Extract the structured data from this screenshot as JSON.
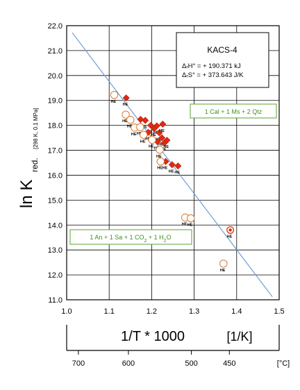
{
  "chart_data": {
    "type": "scatter",
    "title": "",
    "ylabel_main": "ln K",
    "ylabel_sub": "red.",
    "ylabel_sub2": "[298 K, 0.1 MPa]",
    "xlabel": "1/T * 1000",
    "xunit": "[1/K]",
    "celsius_unit": "[°C]",
    "xlim": [
      1.0,
      1.5
    ],
    "ylim": [
      11.0,
      22.0
    ],
    "x_ticks": [
      "1.0",
      "1.1",
      "1.2",
      "1.3",
      "1.4",
      "1.5"
    ],
    "y_ticks": [
      "11.0",
      "12.0",
      "13.0",
      "14.0",
      "15.0",
      "16.0",
      "17.0",
      "18.0",
      "19.0",
      "20.0",
      "21.0",
      "22.0"
    ],
    "celsius_ticks": [
      {
        "label": "700",
        "value": 700
      },
      {
        "label": "600",
        "value": 600
      },
      {
        "label": "500",
        "value": 500
      },
      {
        "label": "450",
        "value": 450
      }
    ],
    "grid": true,
    "legend_box": {
      "name": "KACS-4",
      "line1": "ΔᵣH° = +  190.371 kJ",
      "line2": "ΔᵣS° = +  373.643 J/K"
    },
    "annotations": {
      "upper_right": "1 Cal + 1 Ms + 2 Qtz",
      "lower_left": "1 An + 1 Sa + 1 CO2 + 1 H2O"
    },
    "point_tag": "HE",
    "regression_line": {
      "x": [
        1.013,
        1.484
      ],
      "y": [
        21.72,
        11.12
      ]
    },
    "open_circles": [
      {
        "x": 1.112,
        "y": 19.22
      },
      {
        "x": 1.139,
        "y": 18.43
      },
      {
        "x": 1.15,
        "y": 18.22
      },
      {
        "x": 1.16,
        "y": 17.91
      },
      {
        "x": 1.173,
        "y": 17.93
      },
      {
        "x": 1.181,
        "y": 17.62
      },
      {
        "x": 1.201,
        "y": 17.42
      },
      {
        "x": 1.219,
        "y": 17.02
      },
      {
        "x": 1.221,
        "y": 16.55
      },
      {
        "x": 1.279,
        "y": 14.3
      },
      {
        "x": 1.292,
        "y": 14.27
      },
      {
        "x": 1.369,
        "y": 12.45
      }
    ],
    "double_circles": [
      {
        "x": 1.385,
        "y": 13.8
      }
    ],
    "filled_diamonds": [
      {
        "x": 1.14,
        "y": 19.1
      },
      {
        "x": 1.174,
        "y": 18.24
      },
      {
        "x": 1.185,
        "y": 18.2
      },
      {
        "x": 1.198,
        "y": 18.0
      },
      {
        "x": 1.206,
        "y": 17.88
      },
      {
        "x": 1.212,
        "y": 17.98
      },
      {
        "x": 1.218,
        "y": 17.7
      },
      {
        "x": 1.224,
        "y": 17.5
      },
      {
        "x": 1.23,
        "y": 17.3
      },
      {
        "x": 1.236,
        "y": 17.4
      },
      {
        "x": 1.214,
        "y": 17.35
      },
      {
        "x": 1.192,
        "y": 17.72
      },
      {
        "x": 1.233,
        "y": 16.55
      },
      {
        "x": 1.248,
        "y": 16.42
      },
      {
        "x": 1.262,
        "y": 16.37
      },
      {
        "x": 1.226,
        "y": 18.05
      }
    ]
  }
}
